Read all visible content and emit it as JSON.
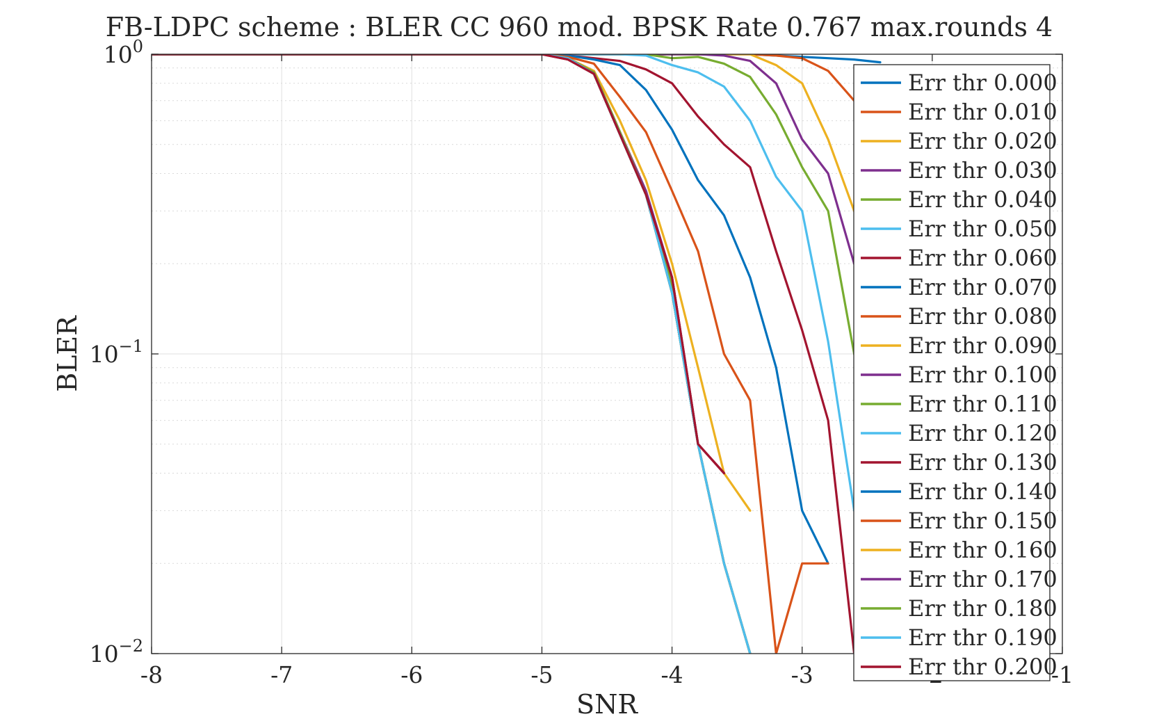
{
  "chart_data": {
    "type": "line",
    "title": "FB-LDPC scheme : BLER CC 960 mod. BPSK Rate 0.767 max.rounds 4",
    "xlabel": "SNR",
    "ylabel": "BLER",
    "xlim": [
      -8,
      -1
    ],
    "ylim": [
      0.01,
      1
    ],
    "yscale": "log",
    "grid": true,
    "minor_grid": true,
    "legend_position": "right (northeast, overlapping plot)",
    "x_ticks": [
      "-8",
      "-7",
      "-6",
      "-5",
      "-4",
      "-3",
      "-2",
      "-1"
    ],
    "y_ticks": [
      {
        "base": "10",
        "exp": "0",
        "value": 1
      },
      {
        "base": "10",
        "exp": "−1",
        "value": 0.1
      },
      {
        "base": "10",
        "exp": "−2",
        "value": 0.01
      }
    ],
    "x": [
      -8.0,
      -7.8,
      -7.6,
      -7.4,
      -7.2,
      -7.0,
      -6.8,
      -6.6,
      -6.4,
      -6.2,
      -6.0,
      -5.8,
      -5.6,
      -5.4,
      -5.2,
      -5.0,
      -4.8,
      -4.6,
      -4.4,
      -4.2,
      -4.0,
      -3.8,
      -3.6,
      -3.4,
      -3.2,
      -3.0,
      -2.8,
      -2.6,
      -2.4
    ],
    "series": [
      {
        "name": "Err thr 0.000",
        "color": "#0072BD",
        "values": [
          1,
          1,
          1,
          1,
          1,
          1,
          1,
          1,
          1,
          1,
          1,
          1,
          1,
          1,
          1,
          1,
          1,
          1,
          1,
          1,
          1,
          1,
          1,
          1,
          0.99,
          0.98,
          0.97,
          0.96,
          0.94
        ]
      },
      {
        "name": "Err thr 0.010",
        "color": "#D95319",
        "values": [
          1,
          1,
          1,
          1,
          1,
          1,
          1,
          1,
          1,
          1,
          1,
          1,
          1,
          1,
          1,
          1,
          1,
          1,
          1,
          1,
          1,
          1,
          1,
          1,
          0.99,
          0.97,
          0.88,
          0.7,
          0.5
        ]
      },
      {
        "name": "Err thr 0.020",
        "color": "#EDB120",
        "values": [
          1,
          1,
          1,
          1,
          1,
          1,
          1,
          1,
          1,
          1,
          1,
          1,
          1,
          1,
          1,
          1,
          1,
          1,
          1,
          1,
          1,
          1,
          1,
          1,
          0.92,
          0.8,
          0.52,
          0.3,
          0.15
        ]
      },
      {
        "name": "Err thr 0.030",
        "color": "#7E2F8E",
        "values": [
          1,
          1,
          1,
          1,
          1,
          1,
          1,
          1,
          1,
          1,
          1,
          1,
          1,
          1,
          1,
          1,
          1,
          1,
          1,
          1,
          1,
          1,
          0.99,
          0.95,
          0.8,
          0.52,
          0.4,
          0.2,
          0.12
        ]
      },
      {
        "name": "Err thr 0.040",
        "color": "#77AC30",
        "values": [
          1,
          1,
          1,
          1,
          1,
          1,
          1,
          1,
          1,
          1,
          1,
          1,
          1,
          1,
          1,
          1,
          1,
          1,
          1,
          1,
          0.97,
          0.98,
          0.93,
          0.84,
          0.63,
          0.42,
          0.3,
          0.1,
          0.05
        ]
      },
      {
        "name": "Err thr 0.050",
        "color": "#4DBEEE",
        "values": [
          1,
          1,
          1,
          1,
          1,
          1,
          1,
          1,
          1,
          1,
          1,
          1,
          1,
          1,
          1,
          1,
          1,
          1,
          1,
          0.99,
          0.92,
          0.87,
          0.78,
          0.6,
          0.39,
          0.3,
          0.11,
          0.03,
          0.02
        ]
      },
      {
        "name": "Err thr 0.060",
        "color": "#A2142F",
        "values": [
          1,
          1,
          1,
          1,
          1,
          1,
          1,
          1,
          1,
          1,
          1,
          1,
          1,
          1,
          1,
          1,
          0.99,
          0.97,
          0.95,
          0.89,
          0.8,
          0.62,
          0.5,
          0.42,
          0.22,
          0.12,
          0.06,
          0.01,
          0.01
        ]
      },
      {
        "name": "Err thr 0.070",
        "color": "#0072BD",
        "values": [
          1,
          1,
          1,
          1,
          1,
          1,
          1,
          1,
          1,
          1,
          1,
          1,
          1,
          1,
          1,
          1,
          0.99,
          0.96,
          0.92,
          0.76,
          0.56,
          0.38,
          0.29,
          0.18,
          0.09,
          0.03,
          0.02,
          null,
          null
        ]
      },
      {
        "name": "Err thr 0.080",
        "color": "#D95319",
        "values": [
          1,
          1,
          1,
          1,
          1,
          1,
          1,
          1,
          1,
          1,
          1,
          1,
          1,
          1,
          1,
          1,
          0.98,
          0.93,
          0.72,
          0.55,
          0.35,
          0.22,
          0.1,
          0.07,
          0.01,
          0.02,
          0.02,
          null,
          null
        ]
      },
      {
        "name": "Err thr 0.090",
        "color": "#EDB120",
        "values": [
          1,
          1,
          1,
          1,
          1,
          1,
          1,
          1,
          1,
          1,
          1,
          1,
          1,
          1,
          1,
          1,
          0.97,
          0.88,
          0.6,
          0.38,
          0.2,
          0.09,
          0.04,
          0.03,
          null,
          null,
          null,
          null,
          null
        ]
      },
      {
        "name": "Err thr 0.100",
        "color": "#7E2F8E",
        "values": [
          1,
          1,
          1,
          1,
          1,
          1,
          1,
          1,
          1,
          1,
          1,
          1,
          1,
          1,
          1,
          1,
          0.97,
          0.87,
          0.55,
          0.35,
          0.18,
          0.05,
          0.04,
          null,
          null,
          null,
          null,
          null,
          null
        ]
      },
      {
        "name": "Err thr 0.110",
        "color": "#77AC30",
        "values": [
          1,
          1,
          1,
          1,
          1,
          1,
          1,
          1,
          1,
          1,
          1,
          1,
          1,
          1,
          1,
          1,
          0.97,
          0.87,
          0.55,
          0.34,
          0.17,
          0.05,
          0.02,
          0.01,
          null,
          null,
          null,
          null,
          null
        ]
      },
      {
        "name": "Err thr 0.120",
        "color": "#4DBEEE",
        "values": [
          1,
          1,
          1,
          1,
          1,
          1,
          1,
          1,
          1,
          1,
          1,
          1,
          1,
          1,
          1,
          1,
          0.97,
          0.86,
          0.54,
          0.34,
          0.16,
          0.05,
          0.02,
          0.01,
          null,
          null,
          null,
          null,
          null
        ]
      },
      {
        "name": "Err thr 0.130",
        "color": "#A2142F",
        "values": [
          1,
          1,
          1,
          1,
          1,
          1,
          1,
          1,
          1,
          1,
          1,
          1,
          1,
          1,
          1,
          1,
          0.96,
          0.86,
          0.54,
          0.34,
          0.18,
          0.05,
          0.04,
          null,
          null,
          null,
          null,
          null,
          null
        ]
      },
      {
        "name": "Err thr 0.140",
        "color": "#0072BD",
        "values": [
          1,
          1,
          1,
          1,
          1,
          1,
          1,
          1,
          1,
          1,
          1,
          1,
          1,
          1,
          1,
          1,
          0.97,
          0.86,
          0.54,
          0.34,
          0.16,
          0.05,
          0.02,
          0.01,
          null,
          null,
          null,
          null,
          null
        ]
      },
      {
        "name": "Err thr 0.150",
        "color": "#D95319",
        "values": [
          1,
          1,
          1,
          1,
          1,
          1,
          1,
          1,
          1,
          1,
          1,
          1,
          1,
          1,
          1,
          1,
          0.97,
          0.86,
          0.54,
          0.34,
          0.16,
          0.05,
          0.02,
          0.01,
          null,
          null,
          null,
          null,
          null
        ]
      },
      {
        "name": "Err thr 0.160",
        "color": "#EDB120",
        "values": [
          1,
          1,
          1,
          1,
          1,
          1,
          1,
          1,
          1,
          1,
          1,
          1,
          1,
          1,
          1,
          1,
          0.97,
          0.86,
          0.54,
          0.34,
          0.16,
          0.05,
          0.02,
          0.01,
          null,
          null,
          null,
          null,
          null
        ]
      },
      {
        "name": "Err thr 0.170",
        "color": "#7E2F8E",
        "values": [
          1,
          1,
          1,
          1,
          1,
          1,
          1,
          1,
          1,
          1,
          1,
          1,
          1,
          1,
          1,
          1,
          0.97,
          0.86,
          0.54,
          0.34,
          0.16,
          0.05,
          0.02,
          0.01,
          null,
          null,
          null,
          null,
          null
        ]
      },
      {
        "name": "Err thr 0.180",
        "color": "#77AC30",
        "values": [
          1,
          1,
          1,
          1,
          1,
          1,
          1,
          1,
          1,
          1,
          1,
          1,
          1,
          1,
          1,
          1,
          0.97,
          0.86,
          0.54,
          0.34,
          0.16,
          0.05,
          0.02,
          0.01,
          null,
          null,
          null,
          null,
          null
        ]
      },
      {
        "name": "Err thr 0.190",
        "color": "#4DBEEE",
        "values": [
          1,
          1,
          1,
          1,
          1,
          1,
          1,
          1,
          1,
          1,
          1,
          1,
          1,
          1,
          1,
          1,
          0.97,
          0.86,
          0.54,
          0.34,
          0.16,
          0.05,
          0.02,
          0.01,
          null,
          null,
          null,
          null,
          null
        ]
      },
      {
        "name": "Err thr 0.200",
        "color": "#A2142F",
        "values": [
          1,
          1,
          1,
          1,
          1,
          1,
          1,
          1,
          1,
          1,
          1,
          1,
          1,
          1,
          1,
          1,
          0.96,
          0.86,
          0.54,
          0.34,
          0.18,
          0.05,
          0.04,
          null,
          null,
          null,
          null,
          null,
          null
        ]
      }
    ]
  }
}
